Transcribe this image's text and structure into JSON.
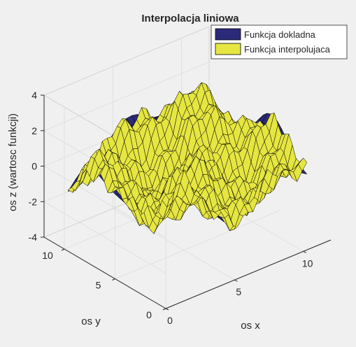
{
  "window": {
    "background": "#f0f0f0"
  },
  "chart_data": {
    "type": "surface",
    "title": "Interpolacja liniowa",
    "xlabel": "os x",
    "ylabel": "os y",
    "zlabel": "os z (wartosc funkcji)",
    "xlim": [
      0,
      12
    ],
    "ylim": [
      0,
      12
    ],
    "zlim": [
      -4,
      4
    ],
    "xticks": [
      "0",
      "5",
      "10"
    ],
    "yticks": [
      "0",
      "5",
      "10"
    ],
    "zticks": [
      "-4",
      "-2",
      "0",
      "2",
      "4"
    ],
    "grid": true,
    "legend": {
      "position": "top-right",
      "entries": [
        "Funkcja dokladna",
        "Funkcja interpolujaca"
      ]
    },
    "series": [
      {
        "name": "Funkcja dokladna",
        "color": "#2b2a7a",
        "edge_color": "#000000"
      },
      {
        "name": "Funkcja interpolujaca",
        "color": "#e6e642",
        "edge_color": "#000000"
      }
    ]
  }
}
